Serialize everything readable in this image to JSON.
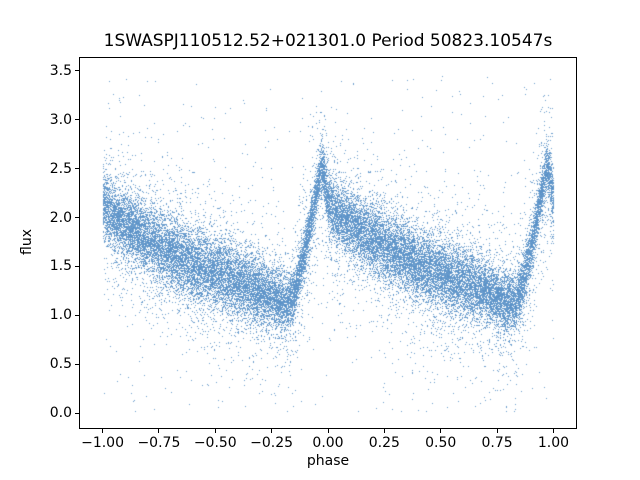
{
  "chart_data": {
    "type": "scatter",
    "title": "1SWASPJ110512.52+021301.0 Period 50823.10547s",
    "xlabel": "phase",
    "ylabel": "flux",
    "xlim": [
      -1.1,
      1.1
    ],
    "ylim": [
      -0.15,
      3.63
    ],
    "x_ticks": [
      -1.0,
      -0.75,
      -0.5,
      -0.25,
      0.0,
      0.25,
      0.5,
      0.75,
      1.0
    ],
    "x_tick_labels": [
      "−1.00",
      "−0.75",
      "−0.50",
      "−0.25",
      "0.00",
      "0.25",
      "0.50",
      "0.75",
      "1.00"
    ],
    "y_ticks": [
      0.0,
      0.5,
      1.0,
      1.5,
      2.0,
      2.5,
      3.0,
      3.5
    ],
    "y_tick_labels": [
      "0.0",
      "0.5",
      "1.0",
      "1.5",
      "2.0",
      "2.5",
      "3.0",
      "3.5"
    ],
    "grid": false,
    "legend": null,
    "marker_color": "#1f77b4",
    "marker_rendered_color": "#5B92C8",
    "marker_alpha": 0.9,
    "marker_size_px": 1,
    "n_points": 32000,
    "seed": 20823,
    "phase_range": [
      -1.0,
      1.0
    ],
    "folded_duplicated": true,
    "model_curve": {
      "comment": "mean flux vs phase (one period, repeated over [-1,0] and [0,1]); sigma = core scatter of band",
      "phase": [
        0.0,
        0.04,
        0.1,
        0.18,
        0.26,
        0.35,
        0.45,
        0.55,
        0.65,
        0.73,
        0.79,
        0.83,
        0.86,
        0.895,
        0.925,
        0.95,
        0.97,
        0.98,
        0.99,
        1.0
      ],
      "flux": [
        2.17,
        2.03,
        1.93,
        1.81,
        1.7,
        1.58,
        1.48,
        1.39,
        1.3,
        1.22,
        1.14,
        1.14,
        1.32,
        1.65,
        2.0,
        2.3,
        2.52,
        2.45,
        2.3,
        2.17
      ],
      "sigma": [
        0.15,
        0.16,
        0.17,
        0.17,
        0.18,
        0.18,
        0.18,
        0.18,
        0.17,
        0.16,
        0.15,
        0.14,
        0.13,
        0.12,
        0.11,
        0.11,
        0.12,
        0.13,
        0.14,
        0.15
      ]
    },
    "noise": {
      "broad_fraction": 0.17,
      "broad_sigma": 0.42,
      "broad_offset": -0.05,
      "outlier_fraction": 0.015,
      "outlier_flux_range": [
        0.02,
        3.45
      ],
      "flux_clip": [
        0.02,
        3.45
      ]
    }
  }
}
